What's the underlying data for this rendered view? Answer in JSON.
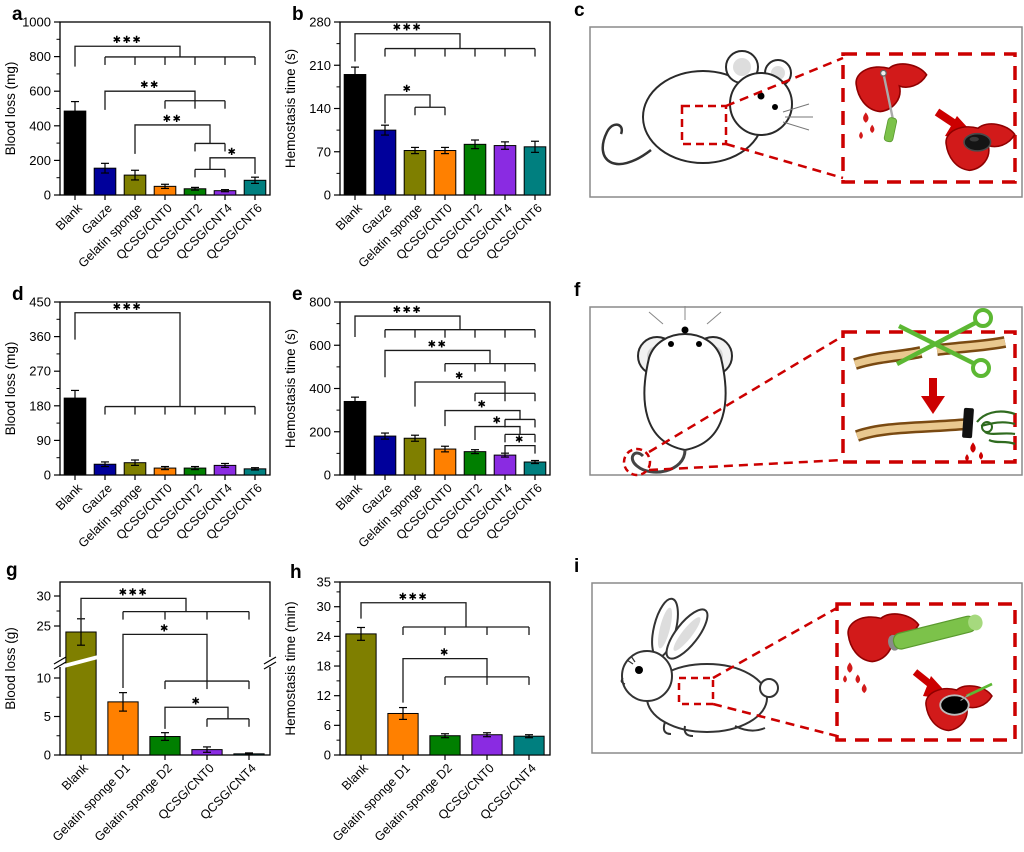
{
  "panel_letters": {
    "a": "a",
    "b": "b",
    "c": "c",
    "d": "d",
    "e": "e",
    "f": "f",
    "g": "g",
    "h": "h",
    "i": "i"
  },
  "colors": {
    "bar_palette_7": [
      "#000000",
      "#00009B",
      "#7F7F00",
      "#FF8000",
      "#007F00",
      "#8A2BE2",
      "#007F7F"
    ],
    "bar_palette_5": [
      "#7F7F00",
      "#FF8000",
      "#007F00",
      "#8A2BE2",
      "#007F7F"
    ],
    "highlight_red": "#CC0000",
    "tool_green": "#7CC24A",
    "scissors_green": "#5CB833",
    "hand_green": "#2F6B1F",
    "liver_red": "#D21A1A"
  },
  "illustrations": {
    "c": {
      "model": "mouse-liver-injury-model",
      "icons": [
        "mouse-icon",
        "injury-site-marker",
        "zoom-box",
        "liver-bleeding-icon",
        "needle-icon",
        "red-arrow-icon",
        "liver-with-sponge-disc-icon"
      ]
    },
    "f": {
      "model": "mouse-tail-amputation-model",
      "icons": [
        "mouse-icon",
        "tail-site-marker",
        "zoom-box",
        "tail-icon",
        "scissors-icon",
        "red-arrow-icon",
        "tail-with-sponge-band-icon",
        "hand-icon",
        "blood-drop-icon"
      ]
    },
    "i": {
      "model": "rabbit-liver-injury-model",
      "icons": [
        "rabbit-icon",
        "injury-site-marker",
        "zoom-box",
        "liver-bleeding-icon",
        "punch-tool-icon",
        "red-arrow-icon",
        "liver-with-filled-hole-icon",
        "syringe-icon"
      ]
    }
  },
  "chart_data": [
    {
      "panel": "a",
      "type": "bar",
      "ylabel": "Blood loss (mg)",
      "ymax": 1000,
      "yticks": [
        0,
        200,
        400,
        600,
        800,
        1000
      ],
      "yminor": [
        100,
        300,
        500,
        700,
        900
      ],
      "categories": [
        "Blank",
        "Gauze",
        "Gelatin sponge",
        "QCSG/CNT0",
        "QCSG/CNT2",
        "QCSG/CNT4",
        "QCSG/CNT6"
      ],
      "values": [
        485,
        155,
        115,
        50,
        36,
        25,
        85
      ],
      "errors": [
        55,
        28,
        28,
        12,
        8,
        6,
        18
      ],
      "colors": [
        "#000000",
        "#00009B",
        "#7F7F00",
        "#FF8000",
        "#007F00",
        "#8A2BE2",
        "#007F7F"
      ],
      "significance": [
        {
          "label": "***",
          "single": 0,
          "group": [
            1,
            2,
            3,
            4,
            5,
            6
          ],
          "main": 860,
          "comb": 798,
          "arm_end": 742
        },
        {
          "label": "**",
          "single": 1,
          "group": [
            3,
            4,
            5
          ],
          "main": 600,
          "comb": 545,
          "arm_end": 492
        },
        {
          "label": "**",
          "single": 2,
          "group": [
            4,
            5
          ],
          "main": 405,
          "comb": 298,
          "arm_end": 238
        },
        {
          "label": "*",
          "single": 6,
          "group": [
            4,
            5
          ],
          "main": 215,
          "comb": 148,
          "arm_end": 122
        }
      ]
    },
    {
      "panel": "b",
      "type": "bar",
      "ylabel": "Hemostasis time (s)",
      "ymax": 280,
      "yticks": [
        0,
        70,
        140,
        210,
        280
      ],
      "yminor": [
        35,
        105,
        175,
        245
      ],
      "categories": [
        "Blank",
        "Gauze",
        "Gelatin sponge",
        "QCSG/CNT0",
        "QCSG/CNT2",
        "QCSG/CNT4",
        "QCSG/CNT6"
      ],
      "values": [
        195,
        105,
        72,
        72,
        82,
        80,
        78
      ],
      "errors": [
        12,
        8,
        5,
        5,
        7,
        6,
        9
      ],
      "colors": [
        "#000000",
        "#00009B",
        "#7F7F00",
        "#FF8000",
        "#007F00",
        "#8A2BE2",
        "#007F7F"
      ],
      "significance": [
        {
          "label": "***",
          "single": 0,
          "group": [
            1,
            2,
            3,
            4,
            5,
            6
          ],
          "main": 261,
          "comb": 237,
          "arm_end": 216
        },
        {
          "label": "*",
          "single": 1,
          "group": [
            2,
            3
          ],
          "main": 162,
          "comb": 142,
          "arm_end": 116
        }
      ]
    },
    {
      "panel": "d",
      "type": "bar",
      "ylabel": "Blood loss (mg)",
      "ymax": 450,
      "yticks": [
        0,
        90,
        180,
        270,
        360,
        450
      ],
      "yminor": [
        45,
        135,
        225,
        315,
        405
      ],
      "categories": [
        "Blank",
        "Gauze",
        "Gelatin sponge",
        "QCSG/CNT0",
        "QCSG/CNT2",
        "QCSG/CNT4",
        "QCSG/CNT6"
      ],
      "values": [
        200,
        28,
        32,
        18,
        18,
        25,
        16
      ],
      "errors": [
        20,
        6,
        7,
        4,
        4,
        5,
        3
      ],
      "colors": [
        "#000000",
        "#00009B",
        "#7F7F00",
        "#FF8000",
        "#007F00",
        "#8A2BE2",
        "#007F7F"
      ],
      "significance": [
        {
          "label": "***",
          "single": 0,
          "group": [
            1,
            2,
            3,
            4,
            5,
            6
          ],
          "main": 422,
          "comb": 178,
          "arm_end": 352
        }
      ]
    },
    {
      "panel": "e",
      "type": "bar",
      "ylabel": "Hemostasis time (s)",
      "ymax": 800,
      "yticks": [
        0,
        200,
        400,
        600,
        800
      ],
      "yminor": [
        100,
        300,
        500,
        700
      ],
      "categories": [
        "Blank",
        "Gauze",
        "Gelatin sponge",
        "QCSG/CNT0",
        "QCSG/CNT2",
        "QCSG/CNT4",
        "QCSG/CNT6"
      ],
      "values": [
        340,
        180,
        170,
        120,
        108,
        92,
        60
      ],
      "errors": [
        20,
        14,
        14,
        13,
        9,
        9,
        7
      ],
      "colors": [
        "#000000",
        "#00009B",
        "#7F7F00",
        "#FF8000",
        "#007F00",
        "#8A2BE2",
        "#007F7F"
      ],
      "significance": [
        {
          "label": "***",
          "single": 0,
          "group": [
            1,
            2,
            3,
            4,
            5,
            6
          ],
          "main": 735,
          "comb": 672,
          "arm_end": 638
        },
        {
          "label": "**",
          "single": 1,
          "group": [
            3,
            4,
            5,
            6
          ],
          "main": 576,
          "comb": 515,
          "arm_end": 452
        },
        {
          "label": "*",
          "single": 2,
          "group": [
            4,
            5,
            6
          ],
          "main": 430,
          "comb": 378,
          "arm_end": 316
        },
        {
          "label": "*",
          "single": 3,
          "group": [
            5,
            6
          ],
          "main": 298,
          "comb": 257,
          "arm_end": 226
        },
        {
          "label": "*",
          "single": 4,
          "group": [
            5,
            6
          ],
          "main": 224,
          "comb": 188,
          "arm_end": 162
        },
        {
          "label": "*",
          "single": null,
          "group": [
            5,
            6
          ],
          "main": 136
        }
      ]
    },
    {
      "panel": "g",
      "type": "bar",
      "ylabel": "Blood loss (g)",
      "axis_break": true,
      "yticks": [
        0,
        5,
        10,
        25,
        30
      ],
      "yminor": [
        2.5,
        7.5,
        27.5
      ],
      "categories": [
        "Blank",
        "Gelatin sponge D1",
        "Gelatin sponge D2",
        "QCSG/CNT0",
        "QCSG/CNT4"
      ],
      "values": [
        24,
        6.9,
        2.4,
        0.7,
        0.15
      ],
      "errors": [
        2.2,
        1.2,
        0.5,
        0.35,
        0.12
      ],
      "colors": [
        "#7F7F00",
        "#FF8000",
        "#007F00",
        "#8A2BE2",
        "#007F7F"
      ],
      "significance": [
        {
          "label": "***",
          "single": 0,
          "group": [
            1,
            2,
            3,
            4
          ],
          "main": 29.6,
          "comb": 27.4,
          "arm_end": 26.3
        },
        {
          "label": "*",
          "single": 1,
          "group": [
            2,
            3,
            4
          ],
          "main": 23.6,
          "comb": 9.6,
          "arm_end": 8.7
        },
        {
          "label": "*",
          "single": 2,
          "group": [
            3,
            4
          ],
          "main": 6.2,
          "comb": 4.7,
          "arm_end": 3.4
        }
      ]
    },
    {
      "panel": "h",
      "type": "bar",
      "ylabel": "Hemostasis time (min)",
      "ymax": 35,
      "yticks": [
        0,
        6,
        12,
        18,
        24,
        30,
        35
      ],
      "yminor": [
        3,
        9,
        15,
        21,
        27,
        33
      ],
      "categories": [
        "Blank",
        "Gelatin sponge D1",
        "Gelatin sponge D2",
        "QCSG/CNT0",
        "QCSG/CNT4"
      ],
      "values": [
        24.5,
        8.4,
        3.9,
        4.1,
        3.8
      ],
      "errors": [
        1.3,
        1.2,
        0.4,
        0.4,
        0.3
      ],
      "colors": [
        "#7F7F00",
        "#FF8000",
        "#007F00",
        "#8A2BE2",
        "#007F7F"
      ],
      "significance": [
        {
          "label": "***",
          "single": 0,
          "group": [
            1,
            2,
            3,
            4
          ],
          "main": 30.8,
          "comb": 25.9,
          "arm_end": 27.6
        },
        {
          "label": "*",
          "single": 1,
          "group": [
            2,
            3,
            4
          ],
          "main": 19.5,
          "comb": 15.8,
          "arm_end": 10.6
        }
      ]
    }
  ]
}
